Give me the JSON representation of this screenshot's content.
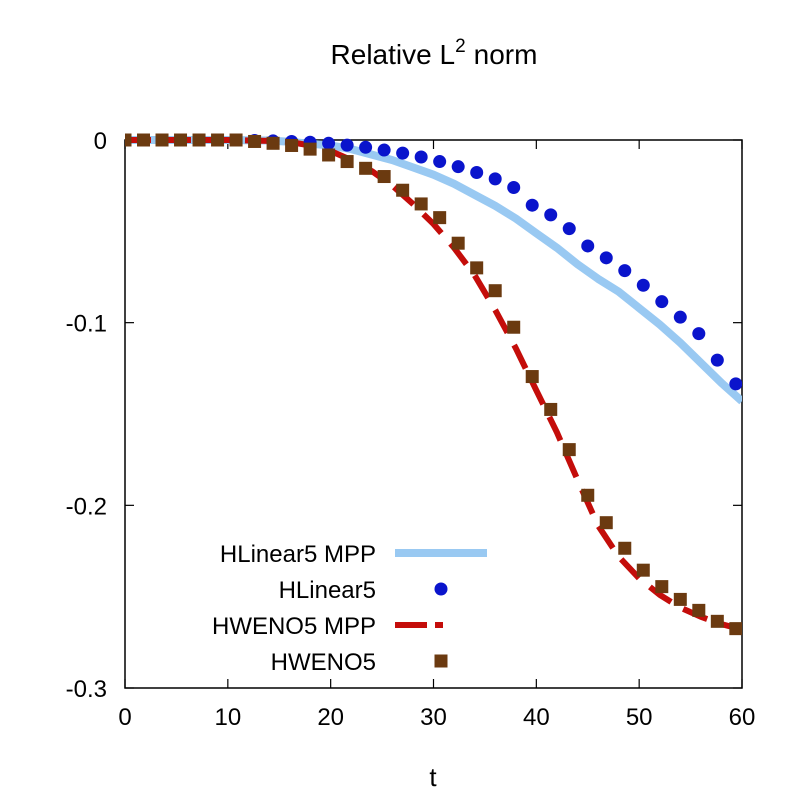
{
  "chart_data": {
    "type": "line",
    "title": "Relative L",
    "title_superscript": "2",
    "title_suffix": "norm",
    "xlabel": "t",
    "ylabel": "",
    "xlim": [
      0,
      60
    ],
    "ylim": [
      -0.3,
      0
    ],
    "x_ticks": [
      {
        "value": 0,
        "label": "0"
      },
      {
        "value": 10,
        "label": "10"
      },
      {
        "value": 20,
        "label": "20"
      },
      {
        "value": 30,
        "label": "30"
      },
      {
        "value": 40,
        "label": "40"
      },
      {
        "value": 50,
        "label": "50"
      },
      {
        "value": 60,
        "label": "60"
      }
    ],
    "y_ticks": [
      {
        "value": 0,
        "label": "0"
      },
      {
        "value": -0.1,
        "label": "-0.1"
      },
      {
        "value": -0.2,
        "label": "-0.2"
      },
      {
        "value": -0.3,
        "label": "-0.3"
      }
    ],
    "grid": false,
    "legend_position": "bottom-left",
    "series": [
      {
        "name": "HLinear5 MPP",
        "style": "line",
        "color": "#99c9f2",
        "x": [
          0,
          5,
          10,
          14,
          16,
          18,
          20,
          22,
          24,
          26,
          28,
          30,
          32,
          34,
          36,
          38,
          40,
          42,
          44,
          46,
          48,
          50,
          52,
          54,
          56,
          58,
          60
        ],
        "y": [
          0,
          0,
          0,
          -0.0003,
          -0.001,
          -0.002,
          -0.003,
          -0.005,
          -0.008,
          -0.011,
          -0.015,
          -0.019,
          -0.024,
          -0.03,
          -0.036,
          -0.043,
          -0.051,
          -0.059,
          -0.068,
          -0.076,
          -0.083,
          -0.092,
          -0.101,
          -0.111,
          -0.122,
          -0.133,
          -0.143
        ]
      },
      {
        "name": "HLinear5",
        "style": "circle",
        "color": "#0a14cc",
        "x": [
          0,
          1.8,
          3.6,
          5.4,
          7.2,
          9.0,
          10.8,
          12.6,
          14.4,
          16.2,
          18.0,
          19.8,
          21.6,
          23.4,
          25.2,
          27.0,
          28.8,
          30.6,
          32.4,
          34.2,
          36.0,
          37.8,
          39.6,
          41.4,
          43.2,
          45.0,
          46.8,
          48.6,
          50.4,
          52.2,
          54.0,
          55.8,
          57.6,
          59.4
        ],
        "y": [
          0,
          0,
          0,
          0,
          0,
          0,
          0,
          -0.0003,
          -0.0005,
          -0.0008,
          -0.0012,
          -0.0018,
          -0.0028,
          -0.004,
          -0.0055,
          -0.0072,
          -0.0093,
          -0.0118,
          -0.0146,
          -0.0178,
          -0.0213,
          -0.026,
          -0.0357,
          -0.041,
          -0.0485,
          -0.058,
          -0.0645,
          -0.0715,
          -0.0795,
          -0.0885,
          -0.097,
          -0.106,
          -0.1205,
          -0.1335
        ]
      },
      {
        "name": "HWENO5 MPP",
        "style": "dashed",
        "color": "#c40d0a",
        "x": [
          0,
          5,
          10,
          14,
          16,
          18,
          20,
          22,
          24,
          26,
          28,
          30,
          32,
          34,
          36,
          38,
          40,
          42,
          44,
          46,
          48,
          50,
          52,
          54,
          56,
          58,
          60
        ],
        "y": [
          0,
          0,
          0,
          -0.0005,
          -0.001,
          -0.003,
          -0.006,
          -0.011,
          -0.017,
          -0.025,
          -0.035,
          -0.046,
          -0.059,
          -0.074,
          -0.093,
          -0.114,
          -0.137,
          -0.16,
          -0.186,
          -0.211,
          -0.228,
          -0.24,
          -0.249,
          -0.256,
          -0.261,
          -0.265,
          -0.268
        ]
      },
      {
        "name": "HWENO5",
        "style": "square",
        "color": "#6b3a10",
        "x": [
          0,
          1.8,
          3.6,
          5.4,
          7.2,
          9.0,
          10.8,
          12.6,
          14.4,
          16.2,
          18.0,
          19.8,
          21.6,
          23.4,
          25.2,
          27.0,
          28.8,
          30.6,
          32.4,
          34.2,
          36.0,
          37.8,
          39.6,
          41.4,
          43.2,
          45.0,
          46.8,
          48.6,
          50.4,
          52.2,
          54.0,
          55.8,
          57.6,
          59.4
        ],
        "y": [
          0,
          0,
          0,
          0,
          0,
          0,
          0,
          -0.0008,
          -0.0018,
          -0.003,
          -0.005,
          -0.0082,
          -0.0118,
          -0.0155,
          -0.02,
          -0.0275,
          -0.035,
          -0.0425,
          -0.0565,
          -0.07,
          -0.0825,
          -0.1025,
          -0.1295,
          -0.1475,
          -0.1695,
          -0.1945,
          -0.2095,
          -0.2235,
          -0.2355,
          -0.2445,
          -0.2515,
          -0.2575,
          -0.2635,
          -0.2675
        ]
      }
    ]
  }
}
